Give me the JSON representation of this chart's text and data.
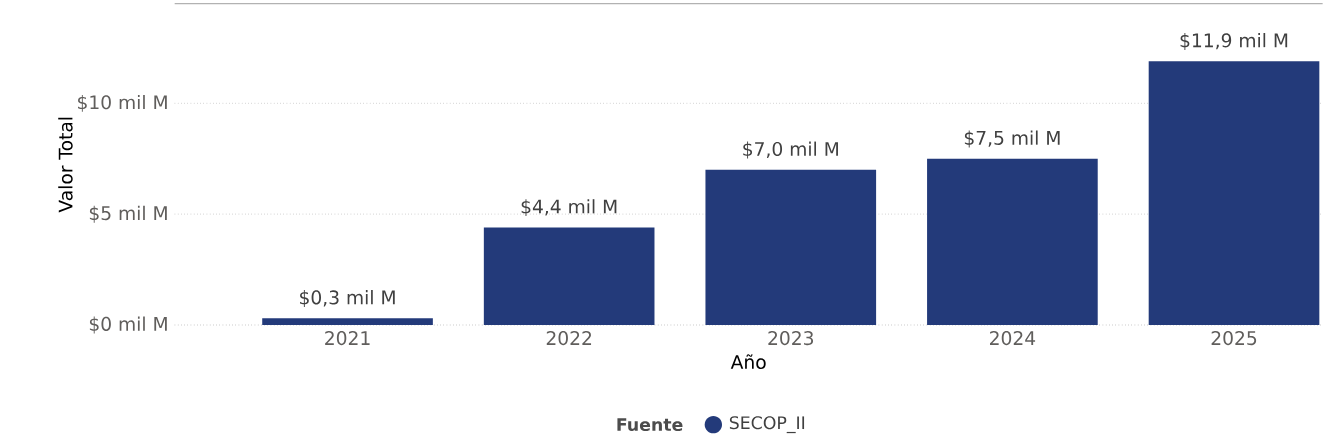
{
  "chart_data": {
    "type": "bar",
    "xlabel": "Año",
    "ylabel": "Valor Total",
    "legend_title": "Fuente",
    "categories": [
      "2021",
      "2022",
      "2023",
      "2024",
      "2025"
    ],
    "series": [
      {
        "name": "SECOP_II",
        "color": "#233a7a",
        "values": [
          0.3,
          4.4,
          7.0,
          7.5,
          11.9
        ],
        "value_labels": [
          "$0,3 mil M",
          "$4,4 mil M",
          "$7,0 mil M",
          "$7,5 mil M",
          "$11,9 mil M"
        ]
      }
    ],
    "ylim": [
      0,
      14.5
    ],
    "yticks": [
      {
        "value": 0,
        "label": "$0 mil M"
      },
      {
        "value": 5,
        "label": "$5 mil M"
      },
      {
        "value": 10,
        "label": "$10 mil M"
      }
    ],
    "grid": "y",
    "legend": "bottom"
  }
}
